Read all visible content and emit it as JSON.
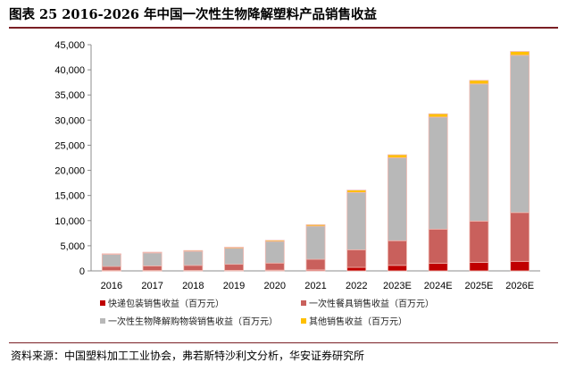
{
  "header": {
    "title": "图表 25 2016-2026 年中国一次性生物降解塑料产品销售收益"
  },
  "source": {
    "text": "资料来源：中国塑料加工工业协会，弗若斯特沙利文分析，华安证券研究所"
  },
  "chart_data": {
    "type": "bar",
    "stacked": true,
    "categories": [
      "2016",
      "2017",
      "2018",
      "2019",
      "2020",
      "2021",
      "2022",
      "2023E",
      "2024E",
      "2025E",
      "2026E"
    ],
    "series": [
      {
        "name": "快递包装销售收益（百万元）",
        "color": "#c00000",
        "values": [
          70,
          80,
          90,
          110,
          150,
          200,
          700,
          1100,
          1500,
          1700,
          1900
        ]
      },
      {
        "name": "一次性餐具销售收益（百万元）",
        "color": "#c9605c",
        "values": [
          800,
          900,
          1000,
          1200,
          1400,
          2100,
          3500,
          4900,
          6800,
          8200,
          9700
        ]
      },
      {
        "name": "一次性生物降解购物袋销售收益（百万元）",
        "color": "#b8b8b8",
        "values": [
          2400,
          2600,
          2800,
          3200,
          4300,
          6600,
          11400,
          16500,
          22300,
          27300,
          31300
        ]
      },
      {
        "name": "其他销售收益（百万元）",
        "color": "#ffc000",
        "values": [
          130,
          140,
          160,
          190,
          220,
          280,
          460,
          600,
          650,
          700,
          750
        ]
      }
    ],
    "ylim": [
      0,
      45000
    ],
    "yticks": [
      0,
      5000,
      10000,
      15000,
      20000,
      25000,
      30000,
      35000,
      40000,
      45000
    ],
    "ytick_labels": [
      "0",
      "5,000",
      "10,000",
      "15,000",
      "20,000",
      "25,000",
      "30,000",
      "35,000",
      "40,000",
      "45,000"
    ],
    "xlabel": "",
    "ylabel": "",
    "grid": false,
    "legend_position": "bottom"
  },
  "colors": {
    "frame": "#7a1f24",
    "bar_outline": "#f0b8b0"
  }
}
